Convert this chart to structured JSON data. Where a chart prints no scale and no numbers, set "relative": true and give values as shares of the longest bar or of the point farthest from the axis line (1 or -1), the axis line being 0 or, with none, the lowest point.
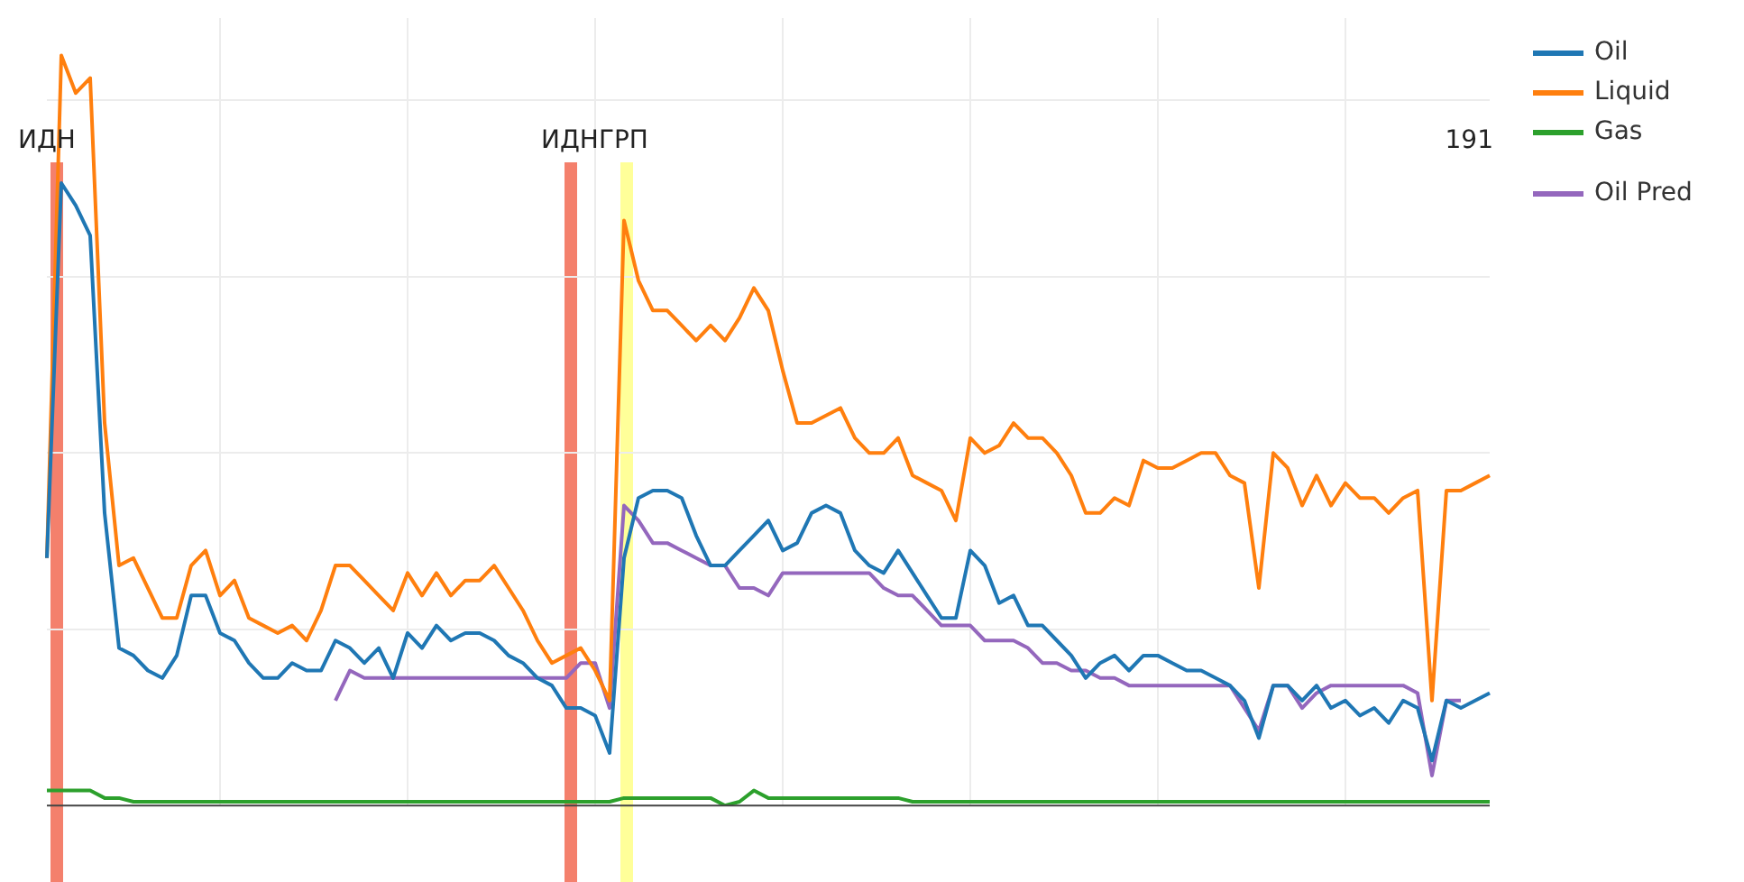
{
  "chart_data": {
    "type": "line",
    "relative": true,
    "grid": true,
    "legend": "top right",
    "marker": "none",
    "line_style": "solid",
    "categories": [
      null,
      null,
      null,
      null,
      null,
      null,
      null,
      null,
      null,
      null,
      null,
      null,
      null,
      null,
      null,
      null,
      null,
      null,
      null,
      null,
      null,
      null,
      null,
      null,
      null,
      null,
      null,
      null,
      null,
      null,
      null,
      null,
      null,
      null,
      null,
      null,
      null,
      null,
      null,
      null,
      null,
      null,
      null,
      null,
      null,
      null,
      null,
      null,
      null,
      null,
      null,
      null,
      null,
      null,
      null,
      null,
      null,
      null,
      null,
      null,
      null,
      null,
      null,
      null,
      null,
      null,
      null,
      null,
      null,
      null,
      null,
      null,
      null,
      null,
      null,
      null,
      null,
      null,
      null,
      null,
      null,
      null,
      null,
      null,
      null,
      null,
      null,
      null,
      null,
      null,
      null,
      null,
      null,
      null,
      null,
      null,
      null,
      null,
      null,
      null,
      null
    ],
    "series": [
      {
        "name": "Oil",
        "color": "#1f77b4",
        "values": [
          0.33,
          0.83,
          0.8,
          0.76,
          0.39,
          0.21,
          0.2,
          0.18,
          0.17,
          0.2,
          0.28,
          0.28,
          0.23,
          0.22,
          0.19,
          0.17,
          0.17,
          0.19,
          0.18,
          0.18,
          0.22,
          0.21,
          0.19,
          0.21,
          0.17,
          0.23,
          0.21,
          0.24,
          0.22,
          0.23,
          0.23,
          0.22,
          0.2,
          0.19,
          0.17,
          0.16,
          0.13,
          0.13,
          0.12,
          0.07,
          0.33,
          0.41,
          0.42,
          0.42,
          0.41,
          0.36,
          0.32,
          0.32,
          0.34,
          0.36,
          0.38,
          0.34,
          0.35,
          0.39,
          0.4,
          0.39,
          0.34,
          0.32,
          0.31,
          0.34,
          0.31,
          0.28,
          0.25,
          0.25,
          0.34,
          0.32,
          0.27,
          0.28,
          0.24,
          0.24,
          0.22,
          0.2,
          0.17,
          0.19,
          0.2,
          0.18,
          0.2,
          0.2,
          0.19,
          0.18,
          0.18,
          0.17,
          0.16,
          0.14,
          0.09,
          0.16,
          0.16,
          0.14,
          0.16,
          0.13,
          0.14,
          0.12,
          0.13,
          0.11,
          0.14,
          0.13,
          0.06,
          0.14,
          0.13,
          0.14,
          0.15
        ]
      },
      {
        "name": "Liquid",
        "color": "#ff7f0e",
        "values": [
          0.33,
          1,
          0.95,
          0.97,
          0.51,
          0.32,
          0.33,
          0.29,
          0.25,
          0.25,
          0.32,
          0.34,
          0.28,
          0.3,
          0.25,
          0.24,
          0.23,
          0.24,
          0.22,
          0.26,
          0.32,
          0.32,
          0.3,
          0.28,
          0.26,
          0.31,
          0.28,
          0.31,
          0.28,
          0.3,
          0.3,
          0.32,
          0.29,
          0.26,
          0.22,
          0.19,
          0.2,
          0.21,
          0.18,
          0.14,
          0.78,
          0.7,
          0.66,
          0.66,
          0.64,
          0.62,
          0.64,
          0.62,
          0.65,
          0.69,
          0.66,
          0.58,
          0.51,
          0.51,
          0.52,
          0.53,
          0.49,
          0.47,
          0.47,
          0.49,
          0.44,
          0.43,
          0.42,
          0.38,
          0.49,
          0.47,
          0.48,
          0.51,
          0.49,
          0.49,
          0.47,
          0.44,
          0.39,
          0.39,
          0.41,
          0.4,
          0.46,
          0.45,
          0.45,
          0.46,
          0.47,
          0.47,
          0.44,
          0.43,
          0.29,
          0.47,
          0.45,
          0.4,
          0.44,
          0.4,
          0.43,
          0.41,
          0.41,
          0.39,
          0.41,
          0.42,
          0.14,
          0.42,
          0.42,
          0.43,
          0.44
        ]
      },
      {
        "name": "Gas",
        "color": "#2ca02c",
        "values": [
          0.02,
          0.02,
          0.02,
          0.02,
          0.01,
          0.01,
          0.005,
          0.005,
          0.005,
          0.005,
          0.005,
          0.005,
          0.005,
          0.005,
          0.005,
          0.005,
          0.005,
          0.005,
          0.005,
          0.005,
          0.005,
          0.005,
          0.005,
          0.005,
          0.005,
          0.005,
          0.005,
          0.005,
          0.005,
          0.005,
          0.005,
          0.005,
          0.005,
          0.005,
          0.005,
          0.005,
          0.005,
          0.005,
          0.005,
          0.005,
          0.01,
          0.01,
          0.01,
          0.01,
          0.01,
          0.01,
          0.01,
          0,
          0.005,
          0.02,
          0.01,
          0.01,
          0.01,
          0.01,
          0.01,
          0.01,
          0.01,
          0.01,
          0.01,
          0.01,
          0.005,
          0.005,
          0.005,
          0.005,
          0.005,
          0.005,
          0.005,
          0.005,
          0.005,
          0.005,
          0.005,
          0.005,
          0.005,
          0.005,
          0.005,
          0.005,
          0.005,
          0.005,
          0.005,
          0.005,
          0.005,
          0.005,
          0.005,
          0.005,
          0.005,
          0.005,
          0.005,
          0.005,
          0.005,
          0.005,
          0.005,
          0.005,
          0.005,
          0.005,
          0.005,
          0.005,
          0.005,
          0.005,
          0.005,
          0.005,
          0.005
        ]
      },
      {
        "name": "Oil Pred",
        "color": "#9467bd",
        "values": [
          null,
          null,
          null,
          null,
          null,
          null,
          null,
          null,
          null,
          null,
          null,
          null,
          null,
          null,
          null,
          null,
          null,
          null,
          null,
          null,
          0.14,
          0.18,
          0.17,
          0.17,
          0.17,
          0.17,
          0.17,
          0.17,
          0.17,
          0.17,
          0.17,
          0.17,
          0.17,
          0.17,
          0.17,
          0.17,
          0.17,
          0.19,
          0.19,
          0.13,
          0.4,
          0.38,
          0.35,
          0.35,
          0.34,
          0.33,
          0.32,
          0.32,
          0.29,
          0.29,
          0.28,
          0.31,
          0.31,
          0.31,
          0.31,
          0.31,
          0.31,
          0.31,
          0.29,
          0.28,
          0.28,
          0.26,
          0.24,
          0.24,
          0.24,
          0.22,
          0.22,
          0.22,
          0.21,
          0.19,
          0.19,
          0.18,
          0.18,
          0.17,
          0.17,
          0.16,
          0.16,
          0.16,
          0.16,
          0.16,
          0.16,
          0.16,
          0.16,
          0.13,
          0.1,
          0.16,
          0.16,
          0.13,
          0.15,
          0.16,
          0.16,
          0.16,
          0.16,
          0.16,
          0.16,
          0.15,
          0.04,
          0.14,
          0.14,
          null,
          null
        ]
      }
    ],
    "annotations": [
      "ИДН",
      "ИДНГРП",
      "191"
    ]
  }
}
